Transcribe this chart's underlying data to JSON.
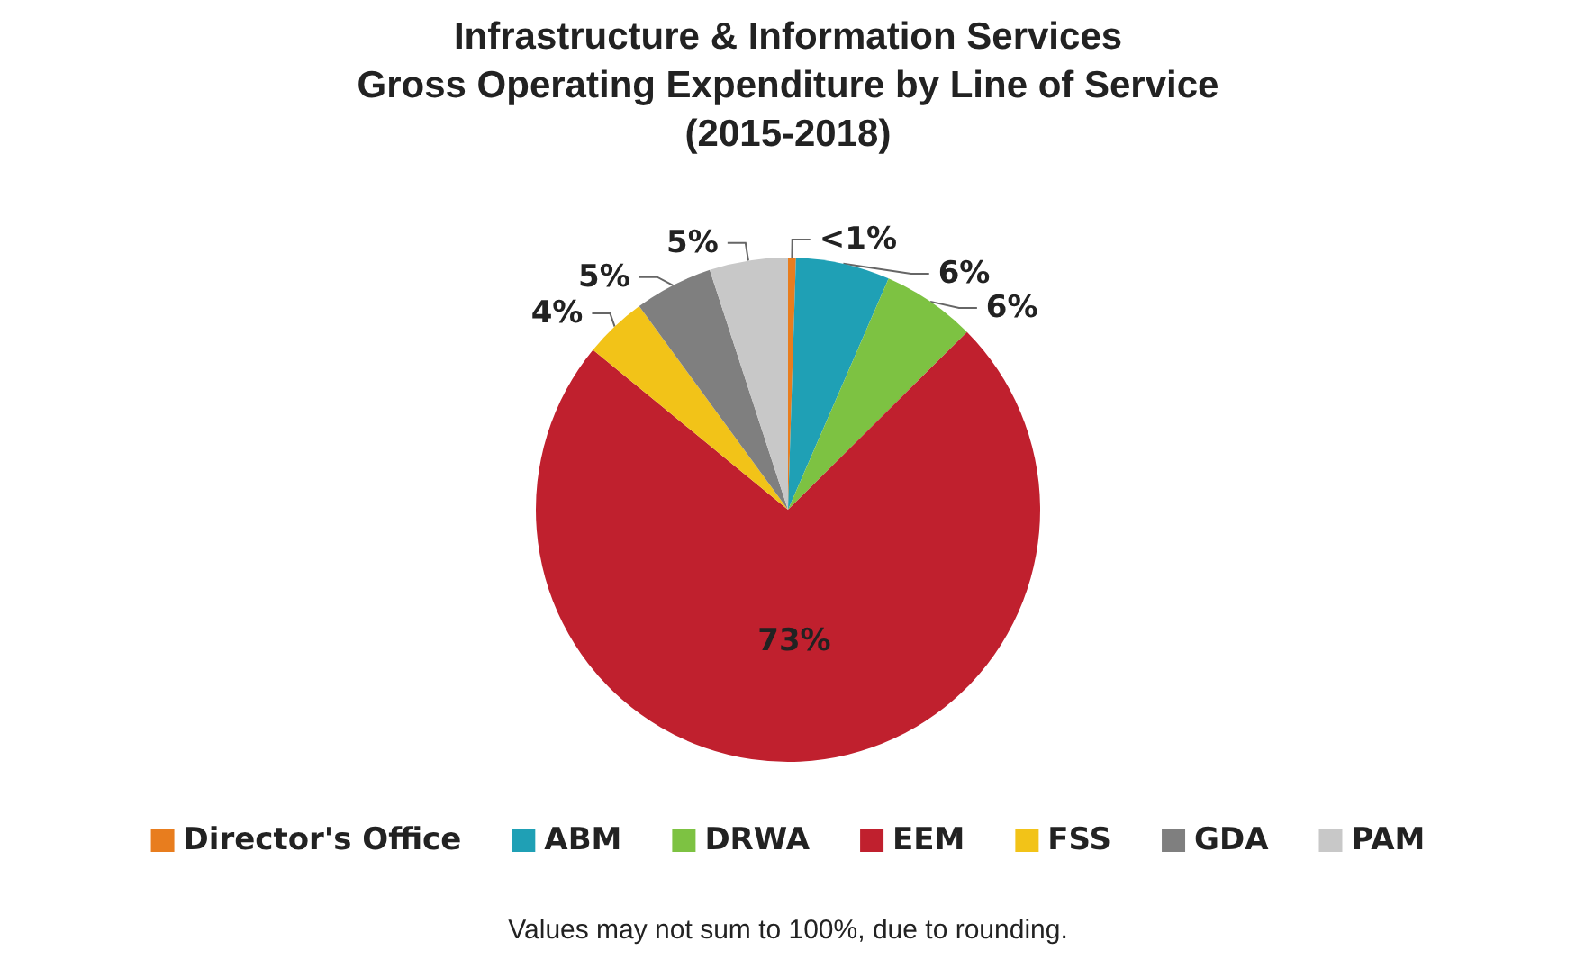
{
  "chart_data": {
    "type": "pie",
    "title": "Infrastructure & Information Services\nGross Operating Expenditure by Line of Service\n(2015-2018)",
    "categories": [
      "Director's Office",
      "ABM",
      "DRWA",
      "EEM",
      "FSS",
      "GDA",
      "PAM"
    ],
    "values": [
      0.5,
      6,
      6,
      73,
      4,
      5,
      5
    ],
    "value_labels": [
      "<1%",
      "6%",
      "6%",
      "73%",
      "4%",
      "5%",
      "5%"
    ],
    "colors": [
      "#e87d1e",
      "#1fa0b5",
      "#7dc242",
      "#c0202e",
      "#f2c318",
      "#7f7f7f",
      "#c8c8c8"
    ],
    "legend": "bottom",
    "annotations": [
      "Values may not sum to 100%, due to rounding."
    ]
  }
}
